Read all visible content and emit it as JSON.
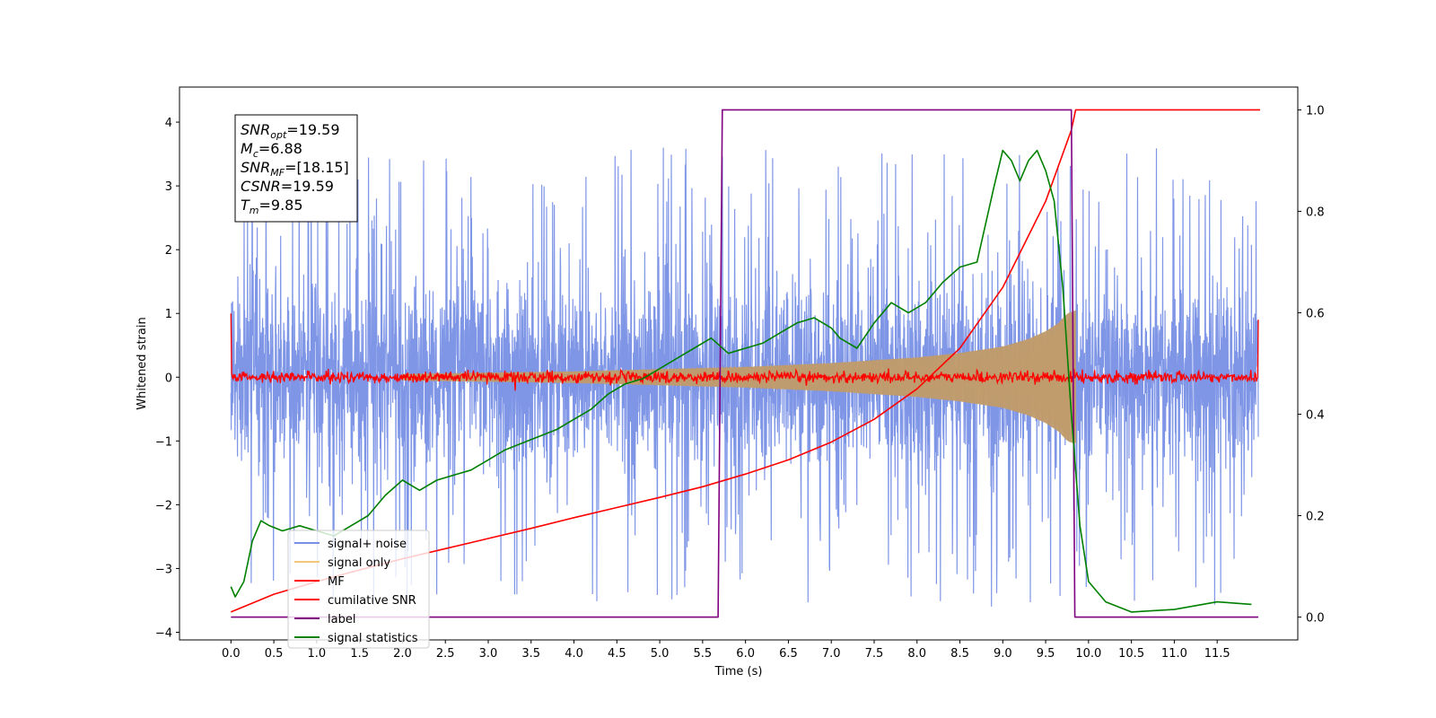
{
  "chart_data": {
    "type": "line",
    "xlabel": "Time (s)",
    "ylabel": "Whitened strain",
    "xlim": [
      -0.6,
      12.44
    ],
    "ylim": [
      -4.12,
      4.55
    ],
    "ylim_right": [
      -0.045,
      1.045
    ],
    "x_ticks": [
      "0.0",
      "0.5",
      "1.0",
      "1.5",
      "2.0",
      "2.5",
      "3.0",
      "3.5",
      "4.0",
      "4.5",
      "5.0",
      "5.5",
      "6.0",
      "6.5",
      "7.0",
      "7.5",
      "8.0",
      "8.5",
      "9.0",
      "9.5",
      "10.0",
      "10.5",
      "11.0",
      "11.5"
    ],
    "y_ticks": [
      "4",
      "3",
      "2",
      "1",
      "0",
      "−1",
      "−2",
      "−3",
      "−4"
    ],
    "y_ticks_right": [
      "1.0",
      "0.8",
      "0.6",
      "0.4",
      "0.2",
      "0.0"
    ],
    "grid": false,
    "legend_position": "lower-left",
    "annotation": [
      {
        "sym": "SNR",
        "sub": "opt",
        "val": "=19.59"
      },
      {
        "sym": "M",
        "sub": "c",
        "val": "=6.88"
      },
      {
        "sym": "SNR",
        "sub": "MF",
        "val": "=[18.15]"
      },
      {
        "sym": "CSNR",
        "sub": "",
        "val": "=19.59"
      },
      {
        "sym": "T",
        "sub": "m",
        "val": "=9.85"
      }
    ],
    "series": [
      {
        "name": "signal+ noise",
        "color": "#7890e6",
        "axis": "left",
        "x_range": [
          0,
          11.98
        ],
        "noise_amplitude_typical": 1.9,
        "noise_peak_max": 4.2
      },
      {
        "name": "signal only",
        "color": "#f5c878",
        "axis": "left",
        "chirp_start": 2.0,
        "chirp_end": 9.85,
        "envelope_x": [
          2.0,
          4.0,
          6.0,
          7.0,
          8.0,
          8.5,
          9.0,
          9.3,
          9.5,
          9.65,
          9.75,
          9.85
        ],
        "envelope_y": [
          0.05,
          0.09,
          0.16,
          0.22,
          0.31,
          0.38,
          0.48,
          0.6,
          0.72,
          0.85,
          1.0,
          1.05
        ]
      },
      {
        "name": "MF",
        "color": "#ff0000",
        "axis": "left",
        "x_range": [
          0,
          11.98
        ],
        "level": 0.0,
        "edge_spike": 1.0,
        "noise_amplitude": 0.08
      },
      {
        "name": "cumilative SNR",
        "color": "#ff0000",
        "axis": "right",
        "x": [
          0,
          0.5,
          1,
          1.5,
          2,
          2.5,
          3,
          3.5,
          4,
          4.5,
          5,
          5.5,
          6,
          6.5,
          7,
          7.5,
          8,
          8.5,
          9,
          9.5,
          9.8,
          9.85,
          12.0
        ],
        "y": [
          0.01,
          0.045,
          0.07,
          0.093,
          0.115,
          0.135,
          0.155,
          0.175,
          0.196,
          0.216,
          0.236,
          0.257,
          0.282,
          0.31,
          0.345,
          0.39,
          0.45,
          0.53,
          0.65,
          0.82,
          0.96,
          1.0,
          1.0
        ]
      },
      {
        "name": "label",
        "color": "#800080",
        "axis": "right",
        "x": [
          0,
          5.68,
          5.73,
          9.8,
          9.84,
          11.98
        ],
        "y": [
          0,
          0,
          1,
          1,
          0,
          0
        ]
      },
      {
        "name": "signal statistics",
        "color": "#008000",
        "axis": "right",
        "x": [
          0,
          0.05,
          0.15,
          0.25,
          0.35,
          0.45,
          0.6,
          0.8,
          1.0,
          1.2,
          1.4,
          1.6,
          1.8,
          2.0,
          2.2,
          2.4,
          2.6,
          2.8,
          3.0,
          3.2,
          3.5,
          3.8,
          4.0,
          4.2,
          4.4,
          4.6,
          4.8,
          5.0,
          5.2,
          5.4,
          5.6,
          5.8,
          6.0,
          6.2,
          6.4,
          6.6,
          6.8,
          7.0,
          7.1,
          7.3,
          7.5,
          7.7,
          7.9,
          8.1,
          8.3,
          8.5,
          8.7,
          8.9,
          9.0,
          9.1,
          9.2,
          9.3,
          9.4,
          9.5,
          9.6,
          9.7,
          9.8,
          9.9,
          10.0,
          10.2,
          10.5,
          11.0,
          11.5,
          11.9
        ],
        "y": [
          0.06,
          0.04,
          0.07,
          0.15,
          0.19,
          0.18,
          0.17,
          0.18,
          0.17,
          0.16,
          0.18,
          0.2,
          0.24,
          0.27,
          0.25,
          0.27,
          0.28,
          0.29,
          0.31,
          0.33,
          0.35,
          0.37,
          0.39,
          0.41,
          0.44,
          0.46,
          0.47,
          0.49,
          0.51,
          0.53,
          0.55,
          0.52,
          0.53,
          0.54,
          0.56,
          0.58,
          0.59,
          0.57,
          0.55,
          0.53,
          0.58,
          0.62,
          0.6,
          0.62,
          0.66,
          0.69,
          0.7,
          0.85,
          0.92,
          0.9,
          0.86,
          0.9,
          0.92,
          0.88,
          0.82,
          0.65,
          0.4,
          0.18,
          0.07,
          0.03,
          0.01,
          0.015,
          0.03,
          0.025
        ]
      }
    ]
  }
}
